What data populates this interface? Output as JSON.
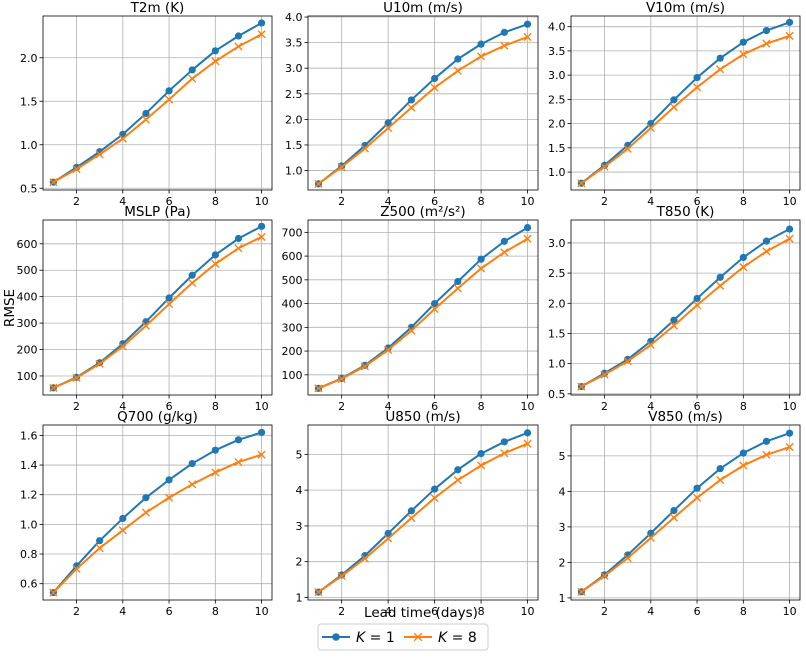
{
  "chart_data": {
    "type": "line",
    "layout": "3x3 grid of subplots",
    "shared_xlabel": "Lead time (days)",
    "shared_ylabel": "RMSE",
    "x": [
      1,
      2,
      3,
      4,
      5,
      6,
      7,
      8,
      9,
      10
    ],
    "xticks": [
      2,
      4,
      6,
      8,
      10
    ],
    "xlim": [
      0.55,
      10.45
    ],
    "legend": {
      "placement": "bottom-center",
      "entries": [
        {
          "label": "K = 1",
          "math_var": "K",
          "rhs": " = 1",
          "color": "#1f77b4",
          "marker": "circle"
        },
        {
          "label": "K = 8",
          "math_var": "K",
          "rhs": " = 8",
          "color": "#ff7f0e",
          "marker": "x"
        }
      ]
    },
    "panels": [
      {
        "title": "T2m (K)",
        "ylim": [
          0.48,
          2.48
        ],
        "yticks": [
          "0.5",
          "1.0",
          "1.5",
          "2.0"
        ],
        "series": [
          {
            "name": "K = 1",
            "values": [
              0.57,
              0.74,
              0.92,
              1.12,
              1.36,
              1.62,
              1.86,
              2.08,
              2.25,
              2.4
            ]
          },
          {
            "name": "K = 8",
            "values": [
              0.57,
              0.72,
              0.89,
              1.07,
              1.29,
              1.52,
              1.76,
              1.96,
              2.13,
              2.27
            ]
          }
        ]
      },
      {
        "title": "U10m (m/s)",
        "ylim": [
          0.62,
          4.02
        ],
        "yticks": [
          "1.0",
          "1.5",
          "2.0",
          "2.5",
          "3.0",
          "3.5",
          "4.0"
        ],
        "series": [
          {
            "name": "K = 1",
            "values": [
              0.74,
              1.09,
              1.49,
              1.93,
              2.38,
              2.8,
              3.18,
              3.47,
              3.7,
              3.86
            ]
          },
          {
            "name": "K = 8",
            "values": [
              0.74,
              1.07,
              1.43,
              1.83,
              2.23,
              2.62,
              2.95,
              3.23,
              3.44,
              3.61
            ]
          }
        ]
      },
      {
        "title": "V10m (m/s)",
        "ylim": [
          0.63,
          4.22
        ],
        "yticks": [
          "1.0",
          "1.5",
          "2.0",
          "2.5",
          "3.0",
          "3.5",
          "4.0"
        ],
        "series": [
          {
            "name": "K = 1",
            "values": [
              0.77,
              1.14,
              1.55,
              2.0,
              2.49,
              2.95,
              3.35,
              3.68,
              3.92,
              4.09
            ]
          },
          {
            "name": "K = 8",
            "values": [
              0.77,
              1.11,
              1.48,
              1.91,
              2.34,
              2.75,
              3.12,
              3.43,
              3.65,
              3.81
            ]
          }
        ]
      },
      {
        "title": "MSLP (Pa)",
        "ylim": [
          28,
          690
        ],
        "yticks": [
          "100",
          "200",
          "300",
          "400",
          "500",
          "600"
        ],
        "series": [
          {
            "name": "K = 1",
            "values": [
              55,
              95,
              150,
              222,
              305,
              395,
              481,
              558,
              620,
              666
            ]
          },
          {
            "name": "K = 8",
            "values": [
              55,
              93,
              146,
              212,
              290,
              372,
              452,
              524,
              583,
              626
            ]
          }
        ]
      },
      {
        "title": "Z500 (m²/s²)",
        "ylim": [
          15,
          752
        ],
        "yticks": [
          "100",
          "200",
          "300",
          "400",
          "500",
          "600",
          "700"
        ],
        "series": [
          {
            "name": "K = 1",
            "values": [
              43,
              85,
              140,
              213,
              300,
              400,
              493,
              587,
              662,
              720
            ]
          },
          {
            "name": "K = 8",
            "values": [
              43,
              83,
              136,
              205,
              286,
              377,
              464,
              548,
              616,
              673
            ]
          }
        ]
      },
      {
        "title": "T850 (K)",
        "ylim": [
          0.48,
          3.38
        ],
        "yticks": [
          "0.5",
          "1.0",
          "1.5",
          "2.0",
          "2.5",
          "3.0"
        ],
        "series": [
          {
            "name": "K = 1",
            "values": [
              0.62,
              0.84,
              1.07,
              1.37,
              1.72,
              2.08,
              2.43,
              2.76,
              3.03,
              3.23
            ]
          },
          {
            "name": "K = 8",
            "values": [
              0.62,
              0.82,
              1.04,
              1.31,
              1.63,
              1.97,
              2.29,
              2.6,
              2.86,
              3.07
            ]
          }
        ]
      },
      {
        "title": "Q700 (g/kg)",
        "ylim": [
          0.49,
          1.67
        ],
        "yticks": [
          "0.6",
          "0.8",
          "1.0",
          "1.2",
          "1.4",
          "1.6"
        ],
        "series": [
          {
            "name": "K = 1",
            "values": [
              0.54,
              0.72,
              0.89,
              1.04,
              1.18,
              1.3,
              1.41,
              1.5,
              1.57,
              1.62
            ]
          },
          {
            "name": "K = 8",
            "values": [
              0.54,
              0.7,
              0.84,
              0.96,
              1.08,
              1.18,
              1.27,
              1.35,
              1.42,
              1.47
            ]
          }
        ]
      },
      {
        "title": "U850 (m/s)",
        "ylim": [
          0.93,
          5.82
        ],
        "yticks": [
          "1",
          "2",
          "3",
          "4",
          "5"
        ],
        "series": [
          {
            "name": "K = 1",
            "values": [
              1.15,
              1.63,
              2.17,
              2.79,
              3.42,
              4.03,
              4.57,
              5.02,
              5.35,
              5.6
            ]
          },
          {
            "name": "K = 8",
            "values": [
              1.15,
              1.6,
              2.09,
              2.65,
              3.22,
              3.78,
              4.28,
              4.69,
              5.03,
              5.3
            ]
          }
        ]
      },
      {
        "title": "V850 (m/s)",
        "ylim": [
          0.94,
          5.87
        ],
        "yticks": [
          "1",
          "2",
          "3",
          "4",
          "5"
        ],
        "series": [
          {
            "name": "K = 1",
            "values": [
              1.17,
              1.65,
              2.21,
              2.82,
              3.46,
              4.09,
              4.64,
              5.08,
              5.41,
              5.64
            ]
          },
          {
            "name": "K = 8",
            "values": [
              1.17,
              1.62,
              2.12,
              2.69,
              3.26,
              3.82,
              4.32,
              4.73,
              5.03,
              5.25
            ]
          }
        ]
      }
    ]
  }
}
